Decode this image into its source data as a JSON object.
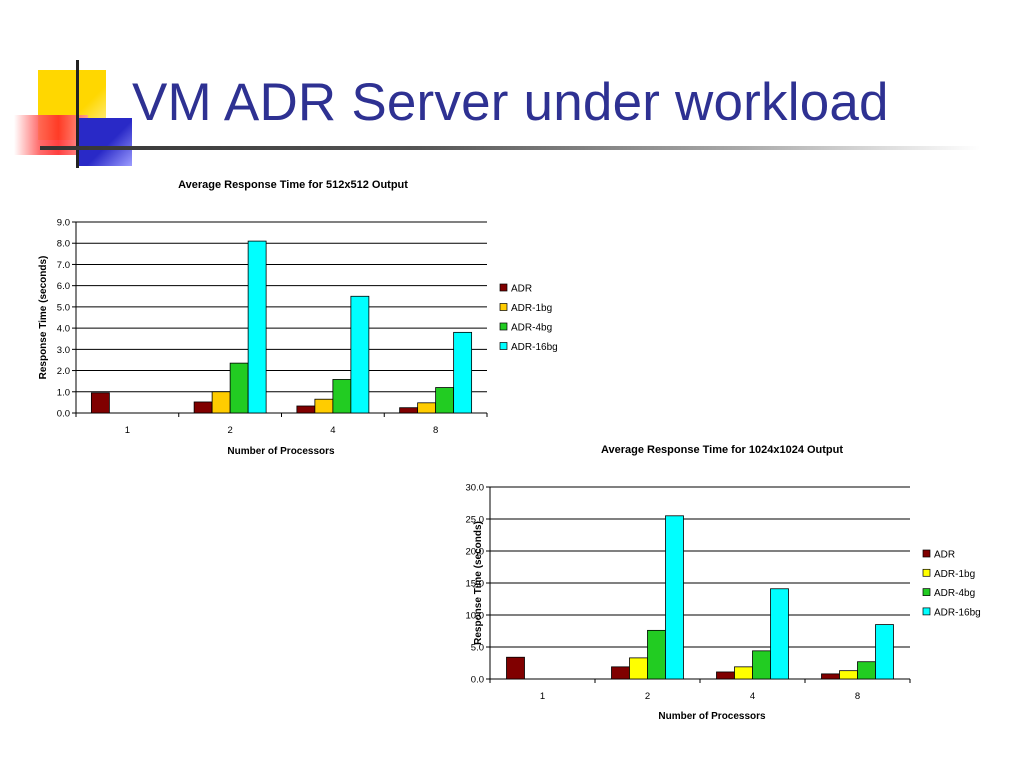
{
  "slide": {
    "title": "VM ADR Server under workload",
    "colors": {
      "title": "#2e3192",
      "logo_yellow": "#ffd700",
      "logo_red": "#ff2a2a",
      "logo_blue": "#2929c7"
    }
  },
  "chart_data": [
    {
      "type": "bar",
      "title": "Average Response Time for 512x512 Output",
      "xlabel": "Number of Processors",
      "ylabel": "Response Time (seconds)",
      "ylim": [
        0,
        9
      ],
      "yticks": [
        "0.0",
        "1.0",
        "2.0",
        "3.0",
        "4.0",
        "5.0",
        "6.0",
        "7.0",
        "8.0",
        "9.0"
      ],
      "categories": [
        "1",
        "2",
        "4",
        "8"
      ],
      "grid": true,
      "legend_position": "right",
      "series": [
        {
          "name": "ADR",
          "color": "#800000",
          "values": [
            0.95,
            0.52,
            0.33,
            0.25
          ]
        },
        {
          "name": "ADR-1bg",
          "color": "#ffcc00",
          "values": [
            null,
            1.0,
            0.65,
            0.48
          ]
        },
        {
          "name": "ADR-4bg",
          "color": "#22cc22",
          "values": [
            null,
            2.35,
            1.58,
            1.2
          ]
        },
        {
          "name": "ADR-16bg",
          "color": "#00ffff",
          "values": [
            null,
            8.1,
            5.5,
            3.8
          ]
        }
      ]
    },
    {
      "type": "bar",
      "title": "Average Response Time for 1024x1024 Output",
      "xlabel": "Number of Processors",
      "ylabel": "Response Time (seconds)",
      "ylim": [
        0,
        30
      ],
      "yticks": [
        "0.0",
        "5.0",
        "10.0",
        "15.0",
        "20.0",
        "25.0",
        "30.0"
      ],
      "categories": [
        "1",
        "2",
        "4",
        "8"
      ],
      "grid": true,
      "legend_position": "right",
      "series": [
        {
          "name": "ADR",
          "color": "#800000",
          "values": [
            3.4,
            1.9,
            1.1,
            0.8
          ]
        },
        {
          "name": "ADR-1bg",
          "color": "#ffff00",
          "values": [
            null,
            3.3,
            1.9,
            1.3
          ]
        },
        {
          "name": "ADR-4bg",
          "color": "#22cc22",
          "values": [
            null,
            7.6,
            4.4,
            2.7
          ]
        },
        {
          "name": "ADR-16bg",
          "color": "#00ffff",
          "values": [
            null,
            25.5,
            14.1,
            8.5
          ]
        }
      ]
    }
  ]
}
